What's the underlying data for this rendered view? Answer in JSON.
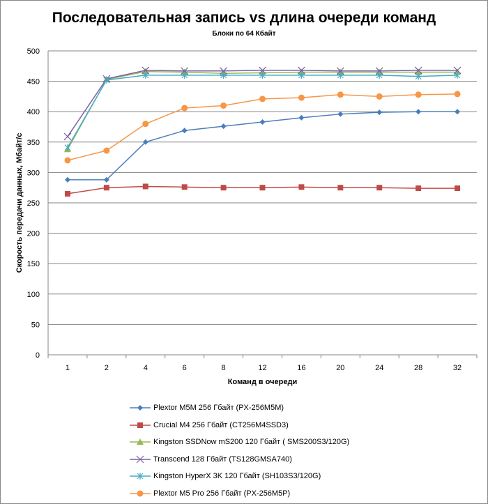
{
  "chart_data": {
    "type": "line",
    "title": "Последовательная запись vs длина очереди команд",
    "subtitle": "Блоки  по 64 Кбайт",
    "xlabel": "Команд  в очереди",
    "ylabel": "Скорость  передачи данных, Мбайт/с",
    "ylim": [
      0,
      500
    ],
    "yticks": [
      0,
      50,
      100,
      150,
      200,
      250,
      300,
      350,
      400,
      450,
      500
    ],
    "grid": true,
    "legend_position": "bottom",
    "categories": [
      "1",
      "2",
      "4",
      "6",
      "8",
      "12",
      "16",
      "20",
      "24",
      "28",
      "32"
    ],
    "series": [
      {
        "name": "Plextor M5M 256 Гбайт (PX-256M5M)",
        "color": "#4a7ebb",
        "marker": "diamond",
        "values": [
          288,
          288,
          350,
          369,
          376,
          383,
          390,
          396,
          399,
          400,
          400
        ]
      },
      {
        "name": "Crucial M4 256 Гбайт (CT256M4SSD3)",
        "color": "#be4b48",
        "marker": "square",
        "values": [
          265,
          275,
          277,
          276,
          275,
          275,
          276,
          275,
          275,
          274,
          274
        ]
      },
      {
        "name": "Kingston SSDNow  mS200 120 Гбайт ( SMS200S3/120G)",
        "color": "#98b954",
        "marker": "triangle",
        "values": [
          338,
          453,
          466,
          465,
          463,
          464,
          465,
          465,
          465,
          465,
          465
        ]
      },
      {
        "name": "Transcend 128 Гбайт (TS128GMSA740)",
        "color": "#7d60a0",
        "marker": "x",
        "values": [
          359,
          454,
          468,
          467,
          467,
          468,
          468,
          467,
          467,
          468,
          468
        ]
      },
      {
        "name": "Kingston HyperX  3K 120 Гбайт (SH103S3/120G)",
        "color": "#46aac5",
        "marker": "star",
        "values": [
          341,
          452,
          460,
          460,
          460,
          460,
          460,
          460,
          460,
          458,
          460
        ]
      },
      {
        "name": "Plextor M5 Pro 256 Гбайт (PX-256M5P)",
        "color": "#f79646",
        "marker": "circle",
        "values": [
          320,
          336,
          380,
          406,
          410,
          421,
          423,
          428,
          425,
          428,
          429
        ]
      }
    ]
  }
}
